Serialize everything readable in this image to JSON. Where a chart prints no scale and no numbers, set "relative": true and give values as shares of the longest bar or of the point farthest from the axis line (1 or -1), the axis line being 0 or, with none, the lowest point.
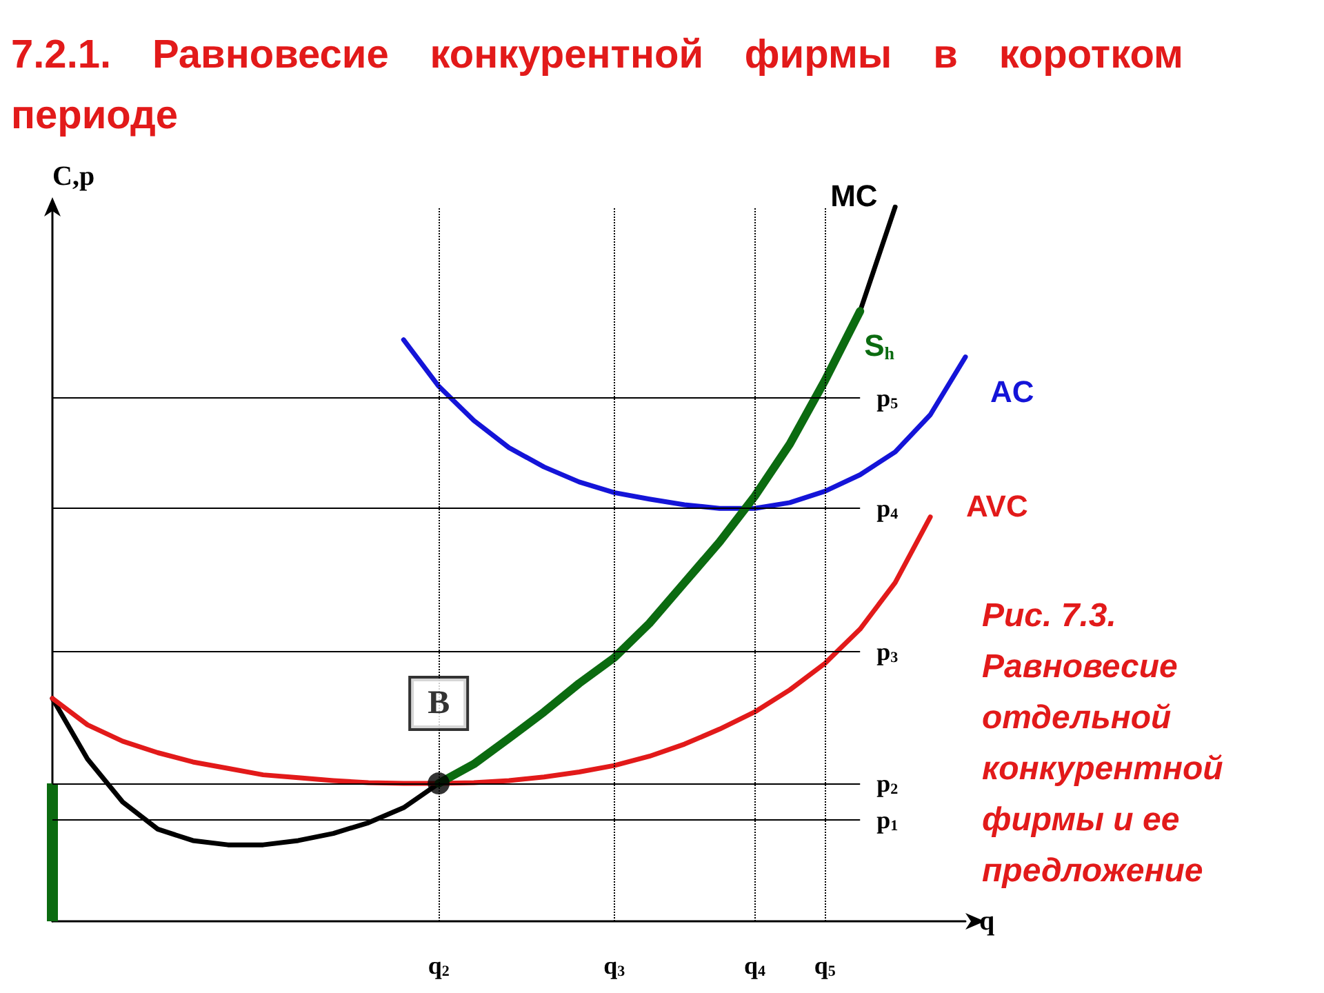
{
  "chart_data": {
    "type": "line",
    "title": "7.2.1. Равновесие конкурентной фирмы в коротком периоде",
    "xlabel": "q",
    "ylabel": "C,p",
    "relative": true,
    "marker": "none",
    "line_style": "solid",
    "grid": false,
    "legend": false,
    "categories": [
      null,
      null,
      null,
      null,
      null,
      null,
      null,
      null,
      null,
      null,
      null,
      "q$_{2}$",
      null,
      null,
      null,
      null,
      "q$_{3}$",
      null,
      null,
      null,
      "q$_{4}$",
      null,
      "q$_{5}$",
      null,
      null,
      null,
      null
    ],
    "series": [
      {
        "name": "MC",
        "color": "#000000",
        "values": [
          0.312,
          0.227,
          0.167,
          0.129,
          0.113,
          0.107,
          0.107,
          0.113,
          0.123,
          0.138,
          0.159,
          0.193,
          0.22,
          0.256,
          0.293,
          0.333,
          0.369,
          0.417,
          0.474,
          0.531,
          0.595,
          0.668,
          0.757,
          0.854,
          1,
          null,
          null
        ]
      },
      {
        "name": "S$_{h}$",
        "color": "#0b6b10",
        "values": [
          null,
          null,
          null,
          null,
          null,
          null,
          null,
          null,
          null,
          null,
          null,
          0.193,
          0.22,
          0.256,
          0.293,
          0.333,
          0.369,
          0.417,
          0.474,
          0.531,
          0.595,
          0.668,
          0.757,
          0.854,
          null,
          null,
          null
        ]
      },
      {
        "type": "bar",
        "color": "#0b6b10",
        "values": [
          0.193,
          null,
          null,
          null,
          null,
          null,
          null,
          null,
          null,
          null,
          null,
          null,
          null,
          null,
          null,
          null,
          null,
          null,
          null,
          null,
          null,
          null,
          null,
          null,
          null,
          null,
          null
        ]
      },
      {
        "name": "AC",
        "color": "#1414d8",
        "values": [
          null,
          null,
          null,
          null,
          null,
          null,
          null,
          null,
          null,
          null,
          0.814,
          0.749,
          0.701,
          0.663,
          0.636,
          0.615,
          0.6,
          0.591,
          0.583,
          0.578,
          0.578,
          0.586,
          0.602,
          0.625,
          0.657,
          0.709,
          0.79
        ]
      },
      {
        "name": "AVC",
        "color": "#e21a1a",
        "values": [
          0.312,
          0.275,
          0.252,
          0.236,
          0.223,
          0.214,
          0.205,
          0.201,
          0.197,
          0.194,
          0.193,
          0.193,
          0.194,
          0.197,
          0.202,
          0.209,
          0.218,
          0.231,
          0.248,
          0.269,
          0.293,
          0.324,
          0.361,
          0.409,
          0.474,
          0.566,
          null
        ]
      }
    ],
    "ref_lines": [
      {
        "axis": "y",
        "value": 0.142,
        "label": "p$_{1}$"
      },
      {
        "axis": "y",
        "value": 0.193,
        "label": "p$_{2}$"
      },
      {
        "axis": "y",
        "value": 0.377,
        "label": "p$_{3}$"
      },
      {
        "axis": "y",
        "value": 0.578,
        "label": "p$_{4}$"
      },
      {
        "axis": "y",
        "value": 0.733,
        "label": "p$_{5}$"
      },
      {
        "axis": "x",
        "value": "q$_{2}$",
        "line_style": "dotted"
      },
      {
        "axis": "x",
        "value": "q$_{3}$",
        "line_style": "dotted"
      },
      {
        "axis": "x",
        "value": "q$_{4}$",
        "line_style": "dotted"
      },
      {
        "axis": "x",
        "value": "q$_{5}$",
        "line_style": "dotted"
      }
    ],
    "annotations": [
      {
        "text": "B",
        "x": "q$_{2}$",
        "y": 0.193
      },
      "Рис. 7.3. Равновесие отдельной конкурентной фирмы и ее предложение"
    ]
  }
}
